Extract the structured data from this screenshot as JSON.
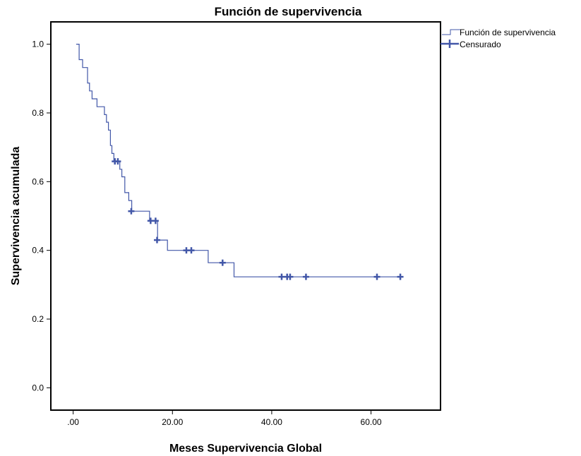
{
  "chart_data": {
    "type": "line",
    "title": "Función de supervivencia",
    "xlabel": "Meses Supervivencia Global",
    "ylabel": "Supervivencia acumulada",
    "xlim": [
      -4.5,
      74
    ],
    "ylim": [
      -0.065,
      1.065
    ],
    "x_ticks": [
      0,
      20,
      40,
      60
    ],
    "x_tick_labels": [
      ".00",
      "20.00",
      "40.00",
      "60.00"
    ],
    "y_ticks": [
      0,
      0.2,
      0.4,
      0.6,
      0.8,
      1.0
    ],
    "y_tick_labels": [
      "0.0",
      "0.2",
      "0.4",
      "0.6",
      "0.8",
      "1.0"
    ],
    "grid": false,
    "legend_position": "top-right",
    "colors": {
      "series": "#4257a8",
      "frame": "#000000"
    },
    "series": [
      {
        "name": "Función de supervivencia",
        "style": "step",
        "x": [
          0.6,
          1.2,
          1.9,
          2.9,
          3.3,
          3.8,
          4.8,
          6.3,
          6.7,
          7.1,
          7.5,
          7.8,
          8.2,
          9.4,
          9.8,
          10.4,
          11.2,
          11.8,
          15.4,
          17,
          19,
          27.2,
          32.4,
          66
        ],
        "y": [
          1.0,
          0.955,
          0.932,
          0.887,
          0.864,
          0.841,
          0.818,
          0.795,
          0.773,
          0.75,
          0.705,
          0.682,
          0.659,
          0.636,
          0.614,
          0.568,
          0.545,
          0.514,
          0.486,
          0.43,
          0.4,
          0.364,
          0.323,
          0.323
        ]
      },
      {
        "name": "Censurado",
        "style": "censor",
        "x": [
          8.4,
          9.0,
          11.7,
          15.6,
          16.6,
          16.9,
          22.8,
          23.8,
          30.1,
          42.0,
          43.1,
          43.7,
          46.9,
          61.2,
          65.9
        ],
        "y": [
          0.659,
          0.659,
          0.514,
          0.486,
          0.486,
          0.43,
          0.4,
          0.4,
          0.364,
          0.323,
          0.323,
          0.323,
          0.323,
          0.323,
          0.323
        ]
      }
    ]
  }
}
